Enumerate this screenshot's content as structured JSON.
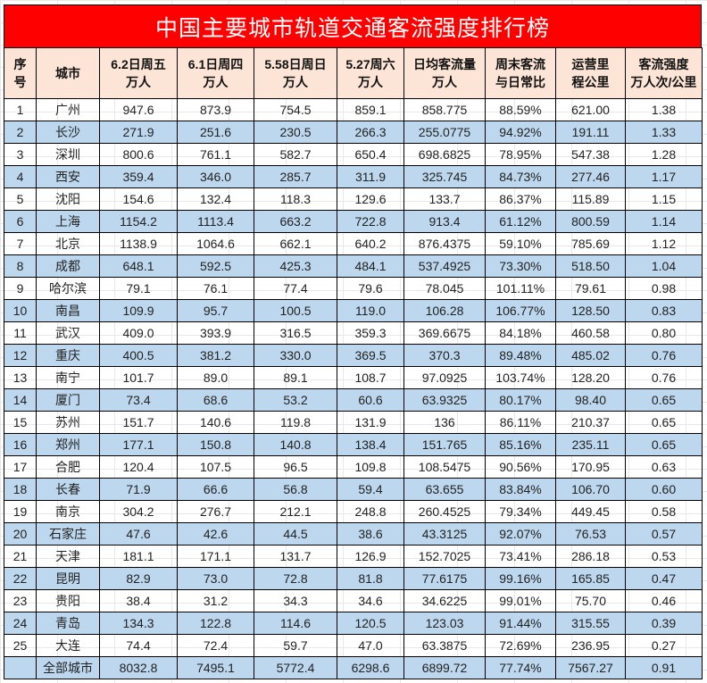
{
  "title": "中国主要城市轨道交通客流强度排行榜",
  "headers": [
    {
      "l1": "序",
      "l2": "号"
    },
    {
      "l1": "城市",
      "l2": ""
    },
    {
      "l1": "6.2日周五",
      "l2": "万人"
    },
    {
      "l1": "6.1日周四",
      "l2": "万人"
    },
    {
      "l1": "5.58日周日",
      "l2": "万人"
    },
    {
      "l1": "5.27周六",
      "l2": "万人"
    },
    {
      "l1": "日均客流量",
      "l2": "万人"
    },
    {
      "l1": "周末客流",
      "l2": "与日常比"
    },
    {
      "l1": "运营里",
      "l2": "程公里"
    },
    {
      "l1": "客流强度",
      "l2": "万人次/公里"
    }
  ],
  "rows": [
    [
      "1",
      "广州",
      "947.6",
      "873.9",
      "754.5",
      "859.1",
      "858.775",
      "88.59%",
      "621.00",
      "1.38"
    ],
    [
      "2",
      "长沙",
      "271.9",
      "251.6",
      "230.5",
      "266.3",
      "255.0775",
      "94.92%",
      "191.11",
      "1.33"
    ],
    [
      "3",
      "深圳",
      "800.6",
      "761.1",
      "582.7",
      "650.4",
      "698.6825",
      "78.95%",
      "547.38",
      "1.28"
    ],
    [
      "4",
      "西安",
      "359.4",
      "346.0",
      "285.7",
      "311.9",
      "325.745",
      "84.73%",
      "277.46",
      "1.17"
    ],
    [
      "5",
      "沈阳",
      "154.6",
      "132.4",
      "118.3",
      "129.6",
      "133.7",
      "86.37%",
      "115.89",
      "1.15"
    ],
    [
      "6",
      "上海",
      "1154.2",
      "1113.4",
      "663.2",
      "722.8",
      "913.4",
      "61.12%",
      "800.59",
      "1.14"
    ],
    [
      "7",
      "北京",
      "1138.9",
      "1064.6",
      "662.1",
      "640.2",
      "876.4375",
      "59.10%",
      "785.69",
      "1.12"
    ],
    [
      "8",
      "成都",
      "648.1",
      "592.5",
      "425.3",
      "484.1",
      "537.4925",
      "73.30%",
      "518.50",
      "1.04"
    ],
    [
      "9",
      "哈尔滨",
      "79.1",
      "76.1",
      "77.4",
      "79.6",
      "78.045",
      "101.11%",
      "79.61",
      "0.98"
    ],
    [
      "10",
      "南昌",
      "109.9",
      "95.7",
      "100.5",
      "119.0",
      "106.28",
      "106.77%",
      "128.50",
      "0.83"
    ],
    [
      "11",
      "武汉",
      "409.0",
      "393.9",
      "316.5",
      "359.3",
      "369.6675",
      "84.18%",
      "460.58",
      "0.80"
    ],
    [
      "12",
      "重庆",
      "400.5",
      "381.2",
      "330.0",
      "369.5",
      "370.3",
      "89.48%",
      "485.02",
      "0.76"
    ],
    [
      "13",
      "南宁",
      "101.7",
      "89.0",
      "89.1",
      "108.7",
      "97.0925",
      "103.74%",
      "128.20",
      "0.76"
    ],
    [
      "14",
      "厦门",
      "73.4",
      "68.6",
      "53.2",
      "60.6",
      "63.9325",
      "80.17%",
      "98.40",
      "0.65"
    ],
    [
      "15",
      "苏州",
      "151.7",
      "140.6",
      "119.8",
      "131.9",
      "136",
      "86.11%",
      "210.37",
      "0.65"
    ],
    [
      "16",
      "郑州",
      "177.1",
      "150.8",
      "140.8",
      "138.4",
      "151.765",
      "85.16%",
      "235.11",
      "0.65"
    ],
    [
      "17",
      "合肥",
      "120.4",
      "107.5",
      "96.5",
      "109.8",
      "108.5475",
      "90.56%",
      "170.95",
      "0.63"
    ],
    [
      "18",
      "长春",
      "71.9",
      "66.6",
      "56.8",
      "59.4",
      "63.655",
      "83.84%",
      "106.70",
      "0.60"
    ],
    [
      "19",
      "南京",
      "304.2",
      "276.7",
      "212.1",
      "248.8",
      "260.4525",
      "79.34%",
      "449.45",
      "0.58"
    ],
    [
      "20",
      "石家庄",
      "47.6",
      "42.6",
      "44.5",
      "38.6",
      "43.3125",
      "92.07%",
      "76.53",
      "0.57"
    ],
    [
      "21",
      "天津",
      "181.1",
      "171.1",
      "131.7",
      "126.9",
      "152.7025",
      "73.41%",
      "286.18",
      "0.53"
    ],
    [
      "22",
      "昆明",
      "82.9",
      "73.0",
      "72.8",
      "81.8",
      "77.6175",
      "99.16%",
      "165.85",
      "0.47"
    ],
    [
      "23",
      "贵阳",
      "38.4",
      "31.2",
      "34.3",
      "34.6",
      "34.6225",
      "99.01%",
      "75.70",
      "0.46"
    ],
    [
      "24",
      "青岛",
      "134.3",
      "122.8",
      "114.6",
      "120.5",
      "123.03",
      "91.44%",
      "315.55",
      "0.39"
    ],
    [
      "25",
      "大连",
      "74.4",
      "72.4",
      "59.7",
      "47.0",
      "63.3875",
      "72.69%",
      "236.95",
      "0.27"
    ]
  ],
  "total": [
    "",
    "全部城市",
    "8032.8",
    "7495.1",
    "5772.4",
    "6298.6",
    "6899.72",
    "77.74%",
    "7567.27",
    "0.91"
  ],
  "colors": {
    "title_bg": "#fe0000",
    "header_bg": "#fce4d6",
    "alt_row_bg": "#bdd7ee"
  }
}
